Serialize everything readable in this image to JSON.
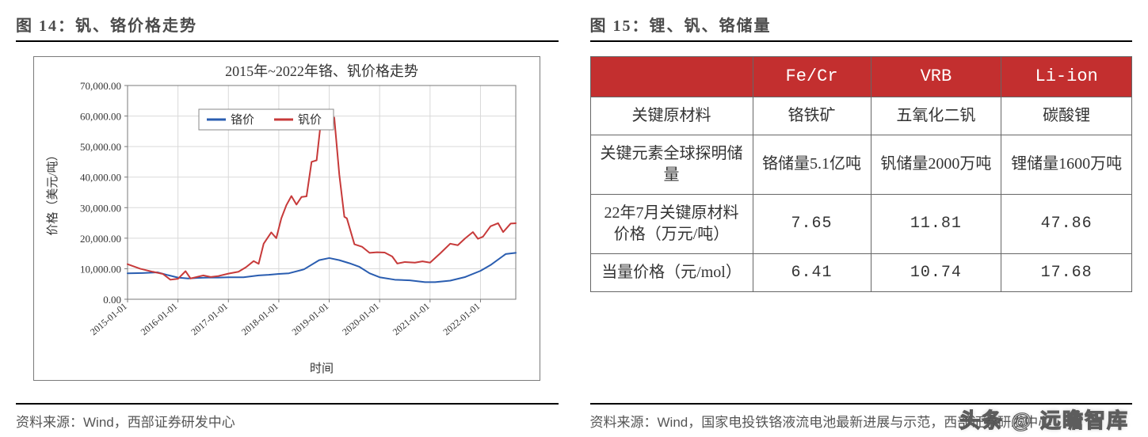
{
  "left": {
    "title": "图 14：钒、铬价格走势",
    "source": "资料来源：Wind，西部证券研发中心"
  },
  "right": {
    "title": "图 15：锂、钒、铬储量",
    "source": "资料来源：Wind，国家电投铁铬液流电池最新进展与示范，西部证券研发中心"
  },
  "chart": {
    "type": "line",
    "title": "2015年~2022年铬、钒价格走势",
    "title_fontsize": 18,
    "xlabel": "时间",
    "ylabel": "价格（美元/吨）",
    "label_fontsize": 15,
    "background_color": "#ffffff",
    "grid_color": "#d9d9d9",
    "border_color": "#7a7a7a",
    "line_width": 2,
    "x_ticks": [
      "2015-01-01",
      "2016-01-01",
      "2017-01-01",
      "2018-01-01",
      "2019-01-01",
      "2020-01-01",
      "2021-01-01",
      "2022-01-01"
    ],
    "y_ticks": [
      0,
      10000,
      20000,
      30000,
      40000,
      50000,
      60000,
      70000
    ],
    "y_tick_labels": [
      "0.00",
      "10,000.00",
      "20,000.00",
      "30,000.00",
      "40,000.00",
      "50,000.00",
      "60,000.00",
      "70,000.00"
    ],
    "ylim": [
      0,
      70000
    ],
    "xlim_index": [
      0,
      7.7
    ],
    "legend": [
      {
        "label": "铬价",
        "color": "#2a5db0"
      },
      {
        "label": "钒价",
        "color": "#c73a3a"
      }
    ],
    "series": {
      "chromium": {
        "label": "铬价",
        "color": "#2a5db0",
        "points": [
          [
            0.0,
            8500
          ],
          [
            0.3,
            8600
          ],
          [
            0.6,
            8800
          ],
          [
            0.8,
            7900
          ],
          [
            1.0,
            7100
          ],
          [
            1.2,
            6800
          ],
          [
            1.4,
            7000
          ],
          [
            1.6,
            7100
          ],
          [
            1.8,
            7100
          ],
          [
            2.0,
            7200
          ],
          [
            2.3,
            7200
          ],
          [
            2.6,
            7800
          ],
          [
            2.8,
            8000
          ],
          [
            3.0,
            8300
          ],
          [
            3.2,
            8500
          ],
          [
            3.5,
            9800
          ],
          [
            3.8,
            12800
          ],
          [
            4.0,
            13500
          ],
          [
            4.2,
            12800
          ],
          [
            4.4,
            11800
          ],
          [
            4.6,
            10600
          ],
          [
            4.8,
            8500
          ],
          [
            5.0,
            7200
          ],
          [
            5.3,
            6400
          ],
          [
            5.6,
            6200
          ],
          [
            5.9,
            5600
          ],
          [
            6.1,
            5600
          ],
          [
            6.4,
            6100
          ],
          [
            6.7,
            7300
          ],
          [
            7.0,
            9300
          ],
          [
            7.2,
            11200
          ],
          [
            7.5,
            14800
          ],
          [
            7.7,
            15200
          ]
        ]
      },
      "vanadium": {
        "label": "钒价",
        "color": "#c73a3a",
        "points": [
          [
            0.0,
            11500
          ],
          [
            0.25,
            10000
          ],
          [
            0.5,
            9000
          ],
          [
            0.7,
            8300
          ],
          [
            0.85,
            6400
          ],
          [
            1.0,
            6700
          ],
          [
            1.15,
            9200
          ],
          [
            1.25,
            6800
          ],
          [
            1.35,
            7200
          ],
          [
            1.5,
            7800
          ],
          [
            1.65,
            7300
          ],
          [
            1.8,
            7600
          ],
          [
            2.0,
            8400
          ],
          [
            2.2,
            9000
          ],
          [
            2.35,
            10500
          ],
          [
            2.5,
            12500
          ],
          [
            2.6,
            11600
          ],
          [
            2.7,
            18200
          ],
          [
            2.85,
            21900
          ],
          [
            2.95,
            20000
          ],
          [
            3.05,
            26500
          ],
          [
            3.15,
            30800
          ],
          [
            3.25,
            33800
          ],
          [
            3.35,
            31000
          ],
          [
            3.45,
            33500
          ],
          [
            3.55,
            33700
          ],
          [
            3.65,
            45000
          ],
          [
            3.75,
            45500
          ],
          [
            3.85,
            60500
          ],
          [
            3.95,
            60000
          ],
          [
            4.1,
            59500
          ],
          [
            4.2,
            40800
          ],
          [
            4.3,
            27000
          ],
          [
            4.35,
            26500
          ],
          [
            4.5,
            18000
          ],
          [
            4.65,
            17200
          ],
          [
            4.8,
            15200
          ],
          [
            4.95,
            15400
          ],
          [
            5.1,
            15300
          ],
          [
            5.25,
            14000
          ],
          [
            5.35,
            11700
          ],
          [
            5.5,
            12200
          ],
          [
            5.7,
            12000
          ],
          [
            5.85,
            12400
          ],
          [
            6.0,
            12000
          ],
          [
            6.2,
            15000
          ],
          [
            6.4,
            18200
          ],
          [
            6.55,
            17700
          ],
          [
            6.7,
            20000
          ],
          [
            6.85,
            22000
          ],
          [
            6.95,
            19800
          ],
          [
            7.05,
            20500
          ],
          [
            7.2,
            23900
          ],
          [
            7.35,
            24900
          ],
          [
            7.45,
            22000
          ],
          [
            7.6,
            24800
          ],
          [
            7.7,
            24900
          ]
        ]
      }
    }
  },
  "table": {
    "columns": [
      "",
      "Fe/Cr",
      "VRB",
      "Li-ion"
    ],
    "rows": [
      {
        "head": "关键原材料",
        "cells": [
          "铬铁矿",
          "五氧化二钒",
          "碳酸锂"
        ],
        "numeric": false
      },
      {
        "head": "关键元素全球探明储量",
        "cells": [
          "铬储量5.1亿吨",
          "钒储量2000万吨",
          "锂储量1600万吨"
        ],
        "numeric": false
      },
      {
        "head": "22年7月关键原材料价格（万元/吨）",
        "cells": [
          "7.65",
          "11.81",
          "47.86"
        ],
        "numeric": true
      },
      {
        "head": "当量价格（元/mol）",
        "cells": [
          "6.41",
          "10.74",
          "17.68"
        ],
        "numeric": true
      }
    ],
    "header_bg": "#c32f2f",
    "header_color": "#ffffff",
    "border_color": "#666666",
    "fontsize": 20
  },
  "watermark": "头条 @ 远瞻智库"
}
